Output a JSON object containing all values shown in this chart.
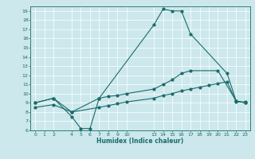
{
  "xlabel": "Humidex (Indice chaleur)",
  "bg_color": "#cce8ec",
  "grid_color": "#ffffff",
  "line_color": "#1a6b6b",
  "xlim": [
    -0.5,
    23.5
  ],
  "ylim": [
    6,
    19.5
  ],
  "xticks": [
    0,
    1,
    2,
    4,
    5,
    6,
    7,
    8,
    9,
    10,
    13,
    14,
    15,
    16,
    17,
    18,
    19,
    20,
    21,
    22,
    23
  ],
  "yticks": [
    6,
    7,
    8,
    9,
    10,
    11,
    12,
    13,
    14,
    15,
    16,
    17,
    18,
    19
  ],
  "curve1_x": [
    0,
    2,
    4,
    5,
    6,
    7,
    13,
    14,
    15,
    16,
    17,
    21,
    22,
    23
  ],
  "curve1_y": [
    9.0,
    9.5,
    7.5,
    6.2,
    6.2,
    9.5,
    17.5,
    19.2,
    19.0,
    19.0,
    16.5,
    12.2,
    9.2,
    9.0
  ],
  "curve2_x": [
    0,
    2,
    4,
    7,
    8,
    9,
    10,
    13,
    14,
    15,
    16,
    17,
    20,
    22,
    23
  ],
  "curve2_y": [
    9.0,
    9.5,
    8.0,
    9.5,
    9.7,
    9.8,
    10.0,
    10.5,
    11.0,
    11.5,
    12.2,
    12.5,
    12.5,
    9.2,
    9.0
  ],
  "curve3_x": [
    0,
    2,
    4,
    7,
    8,
    9,
    10,
    13,
    14,
    15,
    16,
    17,
    18,
    19,
    20,
    21,
    22,
    23
  ],
  "curve3_y": [
    8.5,
    8.8,
    8.0,
    8.5,
    8.7,
    8.9,
    9.1,
    9.5,
    9.8,
    10.0,
    10.3,
    10.5,
    10.7,
    10.9,
    11.1,
    11.3,
    9.1,
    9.1
  ]
}
